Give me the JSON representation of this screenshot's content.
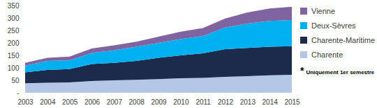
{
  "chart_data": {
    "type": "area",
    "stacked": true,
    "grid": false,
    "legend": "right",
    "x": [
      2003,
      2004,
      2005,
      2006,
      2007,
      2008,
      2009,
      2010,
      2011,
      2012,
      2013,
      2014,
      2015
    ],
    "xlim": [
      2003,
      2015
    ],
    "xticks": [
      2003,
      2004,
      2005,
      2006,
      2007,
      2008,
      2009,
      2010,
      2011,
      2012,
      2013,
      2014,
      2015
    ],
    "ylim": [
      0,
      350
    ],
    "yticks": [
      {
        "value": 0,
        "label": "-"
      },
      50,
      100,
      150,
      200,
      250,
      300,
      350
    ],
    "series": [
      {
        "name": "Charente",
        "color": "#b4c7e7",
        "values": [
          38,
          40,
          42,
          47,
          50,
          52,
          55,
          58,
          60,
          64,
          67,
          70,
          72
        ]
      },
      {
        "name": "Charente-Maritime",
        "color": "#1c2a4c",
        "values": [
          44,
          52,
          53,
          68,
          70,
          76,
          85,
          92,
          98,
          111,
          113,
          115,
          115
        ]
      },
      {
        "name": "Deux-Sèvres",
        "color": "#00b0f0",
        "values": [
          26,
          36,
          35,
          45,
          50,
          57,
          60,
          65,
          70,
          87,
          98,
          103,
          105
        ]
      },
      {
        "name": "Vienne",
        "color": "#8064a2",
        "values": [
          12,
          12,
          15,
          18,
          20,
          20,
          25,
          30,
          32,
          36,
          44,
          50,
          53
        ]
      }
    ],
    "annotations": [
      "*",
      "Uniquement 1er semestre"
    ]
  }
}
